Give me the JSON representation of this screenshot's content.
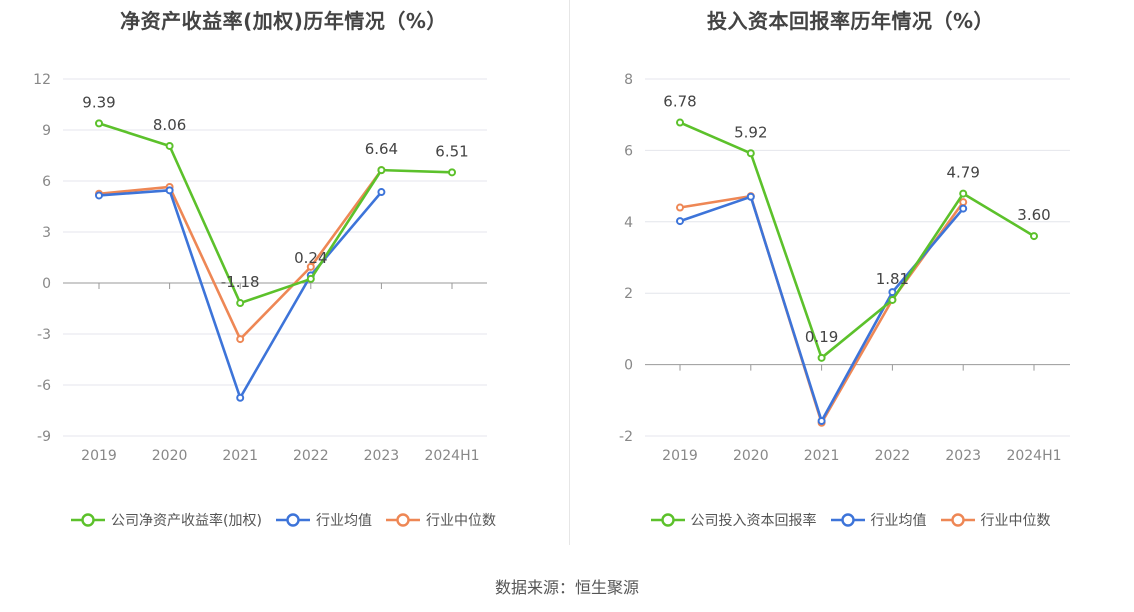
{
  "source": "数据来源：恒生聚源",
  "chart_data": [
    {
      "type": "line",
      "title": "净资产收益率(加权)历年情况（%）",
      "categories": [
        "2019",
        "2020",
        "2021",
        "2022",
        "2023",
        "2024H1"
      ],
      "yticks": [
        12,
        9,
        6,
        3,
        0,
        -3,
        -6,
        -9
      ],
      "ylim": [
        -9,
        12
      ],
      "grid": true,
      "legend_position": "bottom",
      "series": [
        {
          "name": "公司净资产收益率(加权)",
          "color": "#5cc12b",
          "values": [
            9.39,
            8.06,
            -1.18,
            0.24,
            6.64,
            6.51
          ],
          "labels": [
            "9.39",
            "8.06",
            "-1.18",
            "0.24",
            "6.64",
            "6.51"
          ]
        },
        {
          "name": "行业均值",
          "color": "#3d74d9",
          "values": [
            5.15,
            5.45,
            -6.75,
            0.45,
            5.35,
            null
          ]
        },
        {
          "name": "行业中位数",
          "color": "#ee8755",
          "values": [
            5.25,
            5.65,
            -3.3,
            0.95,
            6.64,
            null
          ]
        }
      ]
    },
    {
      "type": "line",
      "title": "投入资本回报率历年情况（%）",
      "categories": [
        "2019",
        "2020",
        "2021",
        "2022",
        "2023",
        "2024H1"
      ],
      "yticks": [
        8,
        6,
        4,
        2,
        0,
        -2
      ],
      "ylim": [
        -2,
        8
      ],
      "grid": true,
      "legend_position": "bottom",
      "series": [
        {
          "name": "公司投入资本回报率",
          "color": "#5cc12b",
          "values": [
            6.78,
            5.92,
            0.19,
            1.81,
            4.79,
            3.6
          ],
          "labels": [
            "6.78",
            "5.92",
            "0.19",
            "1.81",
            "4.79",
            "3.60"
          ]
        },
        {
          "name": "行业均值",
          "color": "#3d74d9",
          "values": [
            4.02,
            4.7,
            -1.58,
            2.03,
            4.37,
            null
          ]
        },
        {
          "name": "行业中位数",
          "color": "#ee8755",
          "values": [
            4.4,
            4.72,
            -1.63,
            1.82,
            4.55,
            null
          ]
        }
      ]
    }
  ]
}
